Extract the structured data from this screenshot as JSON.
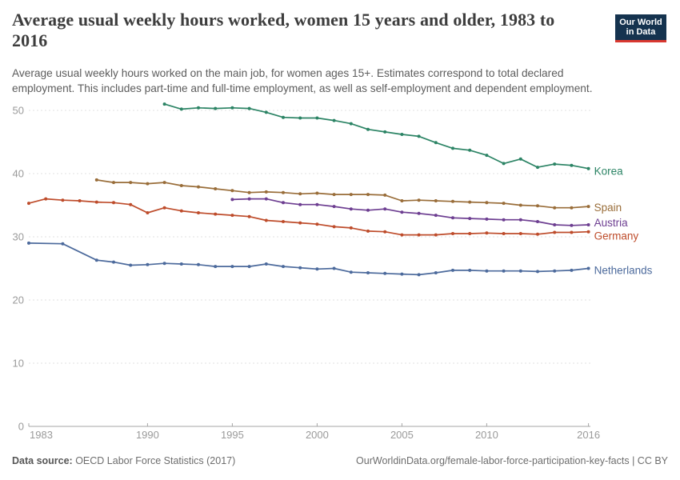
{
  "header": {
    "title_lines": [
      "Average usual weekly hours worked, women 15 years and older, 1983 to",
      "2016"
    ],
    "logo": {
      "line1": "Our World",
      "line2": "in Data",
      "bg_color": "#15334F",
      "bar_color": "#D93830"
    },
    "subtitle_lines": [
      "Average usual weekly hours worked on the main job, for women ages 15+. Estimates correspond to total declared",
      "employment. This includes part-time and full-time employment, as well as self-employment and dependent employment."
    ]
  },
  "footer": {
    "datasource_label": "Data source:",
    "datasource_value": " OECD Labor Force Statistics (2017)",
    "link": "OurWorldinData.org/female-labor-force-participation-key-facts | CC BY"
  },
  "chart_data": {
    "type": "line",
    "title": "Average usual weekly hours worked, women 15 years and older, 1983 to 2016",
    "xlabel": "",
    "ylabel": "",
    "grid": "horizontal-dashed",
    "legend_position": "right-end-labels",
    "xlim": [
      1983,
      2016
    ],
    "ylim": [
      0,
      53
    ],
    "x": [
      1983,
      1984,
      1985,
      1986,
      1987,
      1988,
      1989,
      1990,
      1991,
      1992,
      1993,
      1994,
      1995,
      1996,
      1997,
      1998,
      1999,
      2000,
      2001,
      2002,
      2003,
      2004,
      2005,
      2006,
      2007,
      2008,
      2009,
      2010,
      2011,
      2012,
      2013,
      2014,
      2015,
      2016
    ],
    "x_tick_labels": [
      1983,
      1990,
      1995,
      2000,
      2005,
      2010,
      2016
    ],
    "y_tick_labels": [
      0,
      10,
      20,
      30,
      40,
      50
    ],
    "axis_color": "#a5a5a5",
    "grid_color": "#e2e2e2",
    "tick_text_color": "#9a9a9a",
    "series": [
      {
        "name": "Korea",
        "color": "#2C8465",
        "label_dy": 4,
        "values": [
          null,
          null,
          null,
          null,
          null,
          null,
          null,
          null,
          51.0,
          50.2,
          50.4,
          50.3,
          50.4,
          50.3,
          49.7,
          48.9,
          48.8,
          48.8,
          48.4,
          47.9,
          47.0,
          46.6,
          46.2,
          45.9,
          44.9,
          44.0,
          43.7,
          42.9,
          41.6,
          42.3,
          41.0,
          41.5,
          41.3,
          40.8
        ]
      },
      {
        "name": "Spain",
        "color": "#996D39",
        "label_dy": 2,
        "values": [
          null,
          null,
          null,
          null,
          39.0,
          38.6,
          38.6,
          38.4,
          38.6,
          38.1,
          37.9,
          37.6,
          37.3,
          37.0,
          37.1,
          37.0,
          36.8,
          36.9,
          36.7,
          36.7,
          36.7,
          36.6,
          35.7,
          35.8,
          35.7,
          35.6,
          35.5,
          35.4,
          35.3,
          35.0,
          34.9,
          34.6,
          34.6,
          34.8
        ]
      },
      {
        "name": "Austria",
        "color": "#6D3E91",
        "label_dy": -2,
        "values": [
          null,
          null,
          null,
          null,
          null,
          null,
          null,
          null,
          null,
          null,
          null,
          null,
          35.9,
          36.0,
          36.0,
          35.4,
          35.1,
          35.1,
          34.8,
          34.4,
          34.2,
          34.4,
          33.9,
          33.7,
          33.4,
          33.0,
          32.9,
          32.8,
          32.7,
          32.7,
          32.4,
          31.9,
          31.8,
          31.9
        ]
      },
      {
        "name": "Germany",
        "color": "#BE4C2B",
        "label_dy": 6,
        "values": [
          35.3,
          36.0,
          35.8,
          35.7,
          35.5,
          35.4,
          35.1,
          33.8,
          34.6,
          34.1,
          33.8,
          33.6,
          33.4,
          33.2,
          32.6,
          32.4,
          32.2,
          32.0,
          31.6,
          31.4,
          30.9,
          30.8,
          30.3,
          30.3,
          30.3,
          30.5,
          30.5,
          30.6,
          30.5,
          30.5,
          30.4,
          30.7,
          30.7,
          30.8
        ]
      },
      {
        "name": "Netherlands",
        "color": "#4C6A9C",
        "label_dy": 3,
        "values": [
          29.0,
          null,
          28.9,
          null,
          26.3,
          26.0,
          25.5,
          25.6,
          25.8,
          25.7,
          25.6,
          25.3,
          25.3,
          25.3,
          25.7,
          25.3,
          25.1,
          24.9,
          25.0,
          24.4,
          24.3,
          24.2,
          24.1,
          24.0,
          24.3,
          24.7,
          24.7,
          24.6,
          24.6,
          24.6,
          24.5,
          24.6,
          24.7,
          25.0
        ]
      }
    ]
  }
}
